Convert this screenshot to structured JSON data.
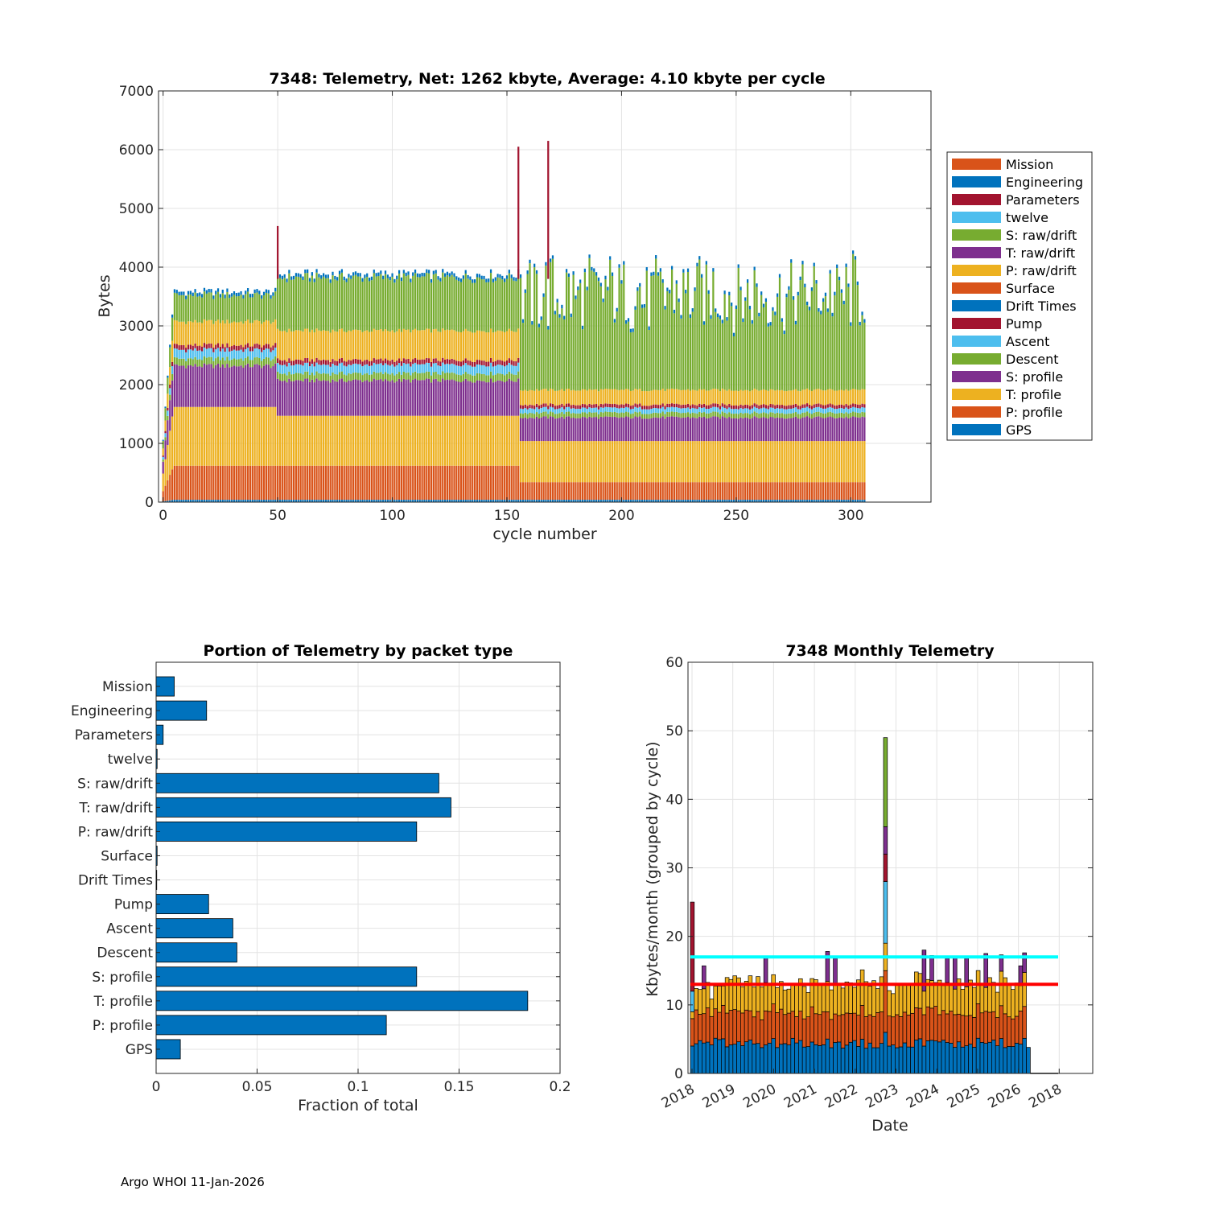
{
  "footer": "Argo WHOI 11-Jan-2026",
  "colors": {
    "orange": "#D95319",
    "blue": "#0072BD",
    "darkred": "#A2142F",
    "cyan": "#4DBEEE",
    "green": "#77AC30",
    "purple": "#7E2F8E",
    "yellow": "#EDB120",
    "bar": "#0072BD",
    "red_line": "#FF0000",
    "cyan_line": "#00FFFF"
  },
  "chart_data": [
    {
      "id": "cycle-telemetry",
      "type": "bar",
      "stacked": true,
      "title": "7348: Telemetry, Net:   1262 kbyte,  Average: 4.10 kbyte per cycle",
      "xlabel": "cycle number",
      "ylabel": "Bytes",
      "xlim": [
        -2,
        335
      ],
      "ylim": [
        0,
        7000
      ],
      "xticks": [
        "0",
        "50",
        "100",
        "150",
        "200",
        "250",
        "300"
      ],
      "yticks": [
        "0",
        "1000",
        "2000",
        "3000",
        "4000",
        "5000",
        "6000",
        "7000"
      ],
      "grid": true,
      "legend_position": "right",
      "legend": [
        "Mission",
        "Engineering",
        "Parameters",
        "twelve",
        "S: raw/drift",
        "T: raw/drift",
        "P: raw/drift",
        "Surface",
        "Drift Times",
        "Pump",
        "Ascent",
        "Descent",
        "S: profile",
        "T: profile",
        "P: profile",
        "GPS"
      ],
      "legend_colors": [
        "orange",
        "blue",
        "darkred",
        "cyan",
        "green",
        "purple",
        "yellow",
        "orange",
        "blue",
        "darkred",
        "cyan",
        "green",
        "purple",
        "yellow",
        "orange",
        "blue"
      ],
      "num_cycles": 307,
      "segments_bottom_to_top": [
        "GPS",
        "P: profile",
        "T: profile",
        "S: profile",
        "Descent",
        "Ascent",
        "Pump",
        "P: raw/drift",
        "S: raw/drift",
        "Engineering"
      ],
      "phases": [
        {
          "name": "cycles 1-50",
          "from": 1,
          "to": 49,
          "gps": 40,
          "p_profile": 580,
          "t_profile": 1000,
          "s_profile": 700,
          "descent": 120,
          "ascent": 150,
          "pump": 80,
          "p_raw": 400,
          "s_raw_drift": 450,
          "engineering": 60
        },
        {
          "name": "cycles 50-155",
          "from": 50,
          "to": 155,
          "gps": 40,
          "p_profile": 580,
          "t_profile": 850,
          "s_profile": 600,
          "descent": 120,
          "ascent": 150,
          "pump": 80,
          "p_raw": 500,
          "s_raw_drift": 900,
          "engineering": 60
        },
        {
          "name": "cycles 156-307",
          "from": 156,
          "to": 307,
          "gps": 40,
          "p_profile": 300,
          "t_profile": 700,
          "s_profile": 400,
          "descent": 80,
          "ascent": 80,
          "pump": 60,
          "p_raw": 250,
          "s_raw_drift": 1600,
          "engineering": 60
        }
      ],
      "spikes": [
        {
          "cycle": 50,
          "value": 4700
        },
        {
          "cycle": 155,
          "value": 6050
        },
        {
          "cycle": 168,
          "value": 6150
        }
      ]
    },
    {
      "id": "portion-by-type",
      "type": "bar",
      "orientation": "horizontal",
      "title": "Portion of Telemetry by packet type",
      "xlabel": "Fraction of total",
      "ylabel": "",
      "xlim": [
        0,
        0.2
      ],
      "xticks": [
        "0",
        "0.05",
        "0.1",
        "0.15",
        "0.2"
      ],
      "grid": true,
      "categories": [
        "Mission",
        "Engineering",
        "Parameters",
        "twelve",
        "S: raw/drift",
        "T: raw/drift",
        "P: raw/drift",
        "Surface",
        "Drift Times",
        "Pump",
        "Ascent",
        "Descent",
        "S: profile",
        "T: profile",
        "P: profile",
        "GPS"
      ],
      "values": [
        0.009,
        0.025,
        0.0035,
        0.0005,
        0.14,
        0.146,
        0.129,
        0.0005,
        0.0003,
        0.026,
        0.038,
        0.04,
        0.129,
        0.184,
        0.114,
        0.012
      ]
    },
    {
      "id": "monthly-telemetry",
      "type": "bar",
      "stacked": true,
      "title": "7348 Monthly Telemetry",
      "xlabel": "Date",
      "ylabel": "Kbytes/month (grouped by cycle)",
      "ylim": [
        0,
        60
      ],
      "yticks": [
        "0",
        "10",
        "20",
        "30",
        "40",
        "50",
        "60"
      ],
      "xticks": [
        "2018",
        "2019",
        "2020",
        "2021",
        "2022",
        "2023",
        "2024",
        "2025",
        "2026",
        "2018"
      ],
      "grid": true,
      "months": 87,
      "base_kbytes": {
        "blue": 4.3,
        "orange": 4.5,
        "yellow": 4.0
      },
      "outliers": [
        {
          "month": 0,
          "blue": 4,
          "orange": 4,
          "yellow": 1,
          "cyan": 3,
          "darkred": 13
        },
        {
          "month": 50,
          "blue": 6,
          "cyan": 9,
          "darkred": 4,
          "orange": 9,
          "yellow": 4,
          "purple": 4,
          "green": 13
        }
      ],
      "purple_peaks": [
        {
          "month": 3,
          "top": 15.7
        },
        {
          "month": 19,
          "top": 17
        },
        {
          "month": 35,
          "top": 17.8
        },
        {
          "month": 37,
          "top": 16.8
        },
        {
          "month": 60,
          "top": 18
        },
        {
          "month": 62,
          "top": 17.2
        },
        {
          "month": 66,
          "top": 16.8
        },
        {
          "month": 68,
          "top": 16.9
        },
        {
          "month": 71,
          "top": 16.8
        },
        {
          "month": 76,
          "top": 17.5
        },
        {
          "month": 80,
          "top": 17.3
        },
        {
          "month": 85,
          "top": 15.7
        },
        {
          "month": 86,
          "top": 17.6
        }
      ],
      "reference_lines": [
        {
          "name": "cyan",
          "value": 17.0
        },
        {
          "name": "red",
          "value": 13.0
        }
      ]
    }
  ]
}
